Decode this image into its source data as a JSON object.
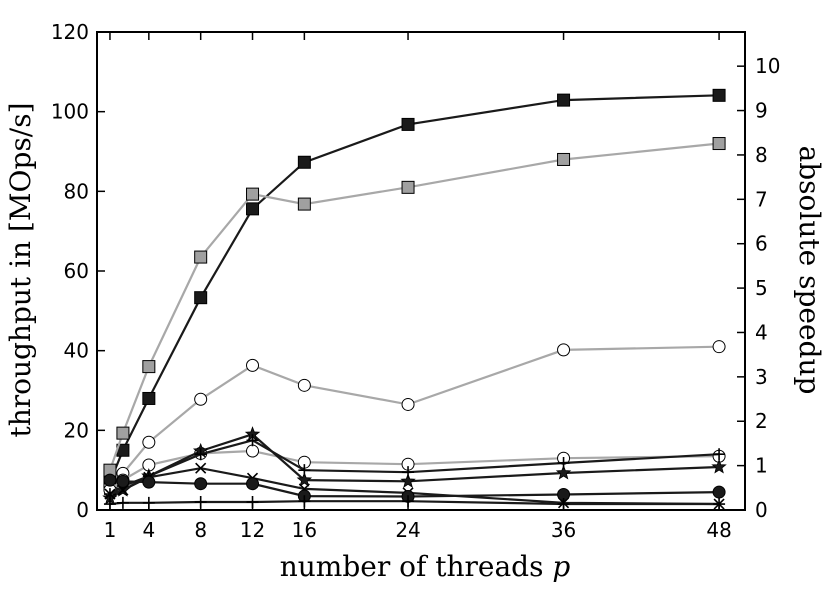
{
  "chart_data": {
    "type": "line",
    "xlabel_text": "number of threads ",
    "xlabel_var": "p",
    "ylabel": "throughput in [MOps/s]",
    "y2label": "absolute speedup",
    "xlim": [
      0,
      50
    ],
    "ylim": [
      0,
      120
    ],
    "y2lim": [
      0,
      10.77
    ],
    "xticks": [
      1,
      4,
      8,
      12,
      16,
      24,
      36,
      48
    ],
    "yticks": [
      0,
      20,
      40,
      60,
      80,
      100,
      120
    ],
    "y2ticks": [
      0,
      1,
      2,
      3,
      4,
      5,
      6,
      7,
      8,
      9,
      10
    ],
    "grid": false,
    "colors": {
      "dark": "#1a1a1a",
      "light": "#a8a8a8",
      "dark_fill": "#1a1a1a",
      "light_fill": "#a0a0a0"
    },
    "series": [
      {
        "marker": "square",
        "tone": "dark",
        "fill": "dark",
        "x": [
          1,
          2,
          4,
          8,
          12,
          16,
          24,
          36,
          48
        ],
        "y": [
          7,
          15,
          28,
          53.3,
          75.6,
          87.3,
          96.8,
          102.9,
          104.1
        ]
      },
      {
        "marker": "square",
        "tone": "light",
        "fill": "light",
        "x": [
          1,
          2,
          4,
          8,
          12,
          16,
          24,
          36,
          48
        ],
        "y": [
          10,
          19.3,
          36,
          63.5,
          79.3,
          76.8,
          81,
          88,
          92
        ]
      },
      {
        "marker": "circle",
        "tone": "light",
        "fill": "white",
        "x": [
          1,
          2,
          4,
          8,
          12,
          16,
          24,
          36,
          48
        ],
        "y": [
          6,
          9.2,
          17,
          27.8,
          36.3,
          31.3,
          26.5,
          40.2,
          41
        ]
      },
      {
        "marker": "circle",
        "tone": "light",
        "fill": "white",
        "x": [
          1,
          2,
          4,
          8,
          12,
          16,
          24,
          36,
          48
        ],
        "y": [
          5,
          7.5,
          11.3,
          14.2,
          14.8,
          12,
          11.5,
          13,
          13.5
        ]
      },
      {
        "marker": "star",
        "tone": "dark",
        "fill": "dark",
        "x": [
          1,
          2,
          4,
          8,
          12,
          16,
          24,
          36,
          48
        ],
        "y": [
          3,
          5,
          8.5,
          14.8,
          19,
          7.5,
          7.2,
          9.3,
          10.8
        ]
      },
      {
        "marker": "plus",
        "tone": "dark",
        "fill": "none",
        "x": [
          1,
          2,
          4,
          8,
          12,
          16,
          24,
          36,
          48
        ],
        "y": [
          4,
          6,
          8.5,
          14,
          17.5,
          10,
          9.5,
          11.8,
          14
        ]
      },
      {
        "marker": "x",
        "tone": "dark",
        "fill": "none",
        "x": [
          1,
          2,
          4,
          8,
          12,
          16,
          24,
          36,
          48
        ],
        "y": [
          4,
          5,
          8.2,
          10.5,
          8,
          5.3,
          4.3,
          1.8,
          1.5
        ]
      },
      {
        "marker": "filled-circle",
        "tone": "dark",
        "fill": "dark",
        "x": [
          1,
          2,
          4,
          8,
          12,
          16,
          24,
          36,
          48
        ],
        "y": [
          7.5,
          7.2,
          7,
          6.6,
          6.6,
          3.5,
          3.4,
          3.9,
          4.5
        ]
      },
      {
        "marker": "plus",
        "tone": "dark",
        "fill": "none",
        "x": [
          1,
          2,
          4,
          8,
          12,
          16,
          24,
          36,
          48
        ],
        "y": [
          1.5,
          1.8,
          1.8,
          2,
          2,
          2.2,
          2.2,
          1.5,
          1.5
        ]
      }
    ]
  }
}
